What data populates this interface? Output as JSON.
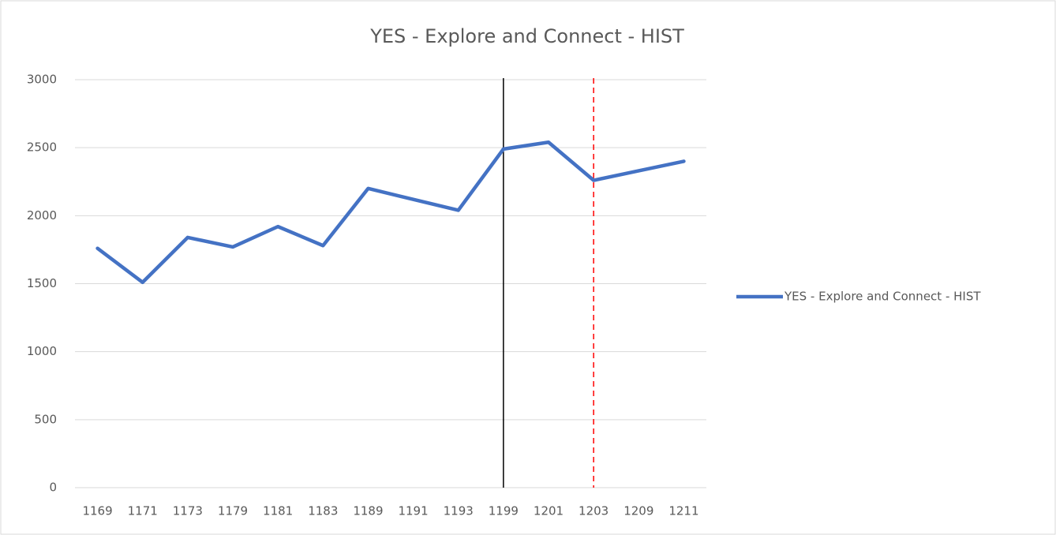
{
  "chart_data": {
    "type": "line",
    "title": "YES - Explore and Connect - HIST",
    "categories": [
      "1169",
      "1171",
      "1173",
      "1179",
      "1181",
      "1183",
      "1189",
      "1191",
      "1193",
      "1199",
      "1201",
      "1203",
      "1209",
      "1211"
    ],
    "series": [
      {
        "name": "YES - Explore and Connect - HIST",
        "color": "#4472c4",
        "values": [
          1760,
          1510,
          1840,
          1770,
          1920,
          1780,
          2200,
          2120,
          2040,
          2490,
          2540,
          2260,
          2330,
          2400
        ]
      }
    ],
    "ylim": [
      0,
      3000
    ],
    "yticks": [
      0,
      500,
      1000,
      1500,
      2000,
      2500,
      3000
    ],
    "grid": true,
    "legend": "right",
    "vlines": [
      {
        "at": "1199",
        "color": "#000000",
        "style": "solid"
      },
      {
        "at": "1203",
        "color": "#ff0000",
        "style": "dashed"
      }
    ]
  }
}
